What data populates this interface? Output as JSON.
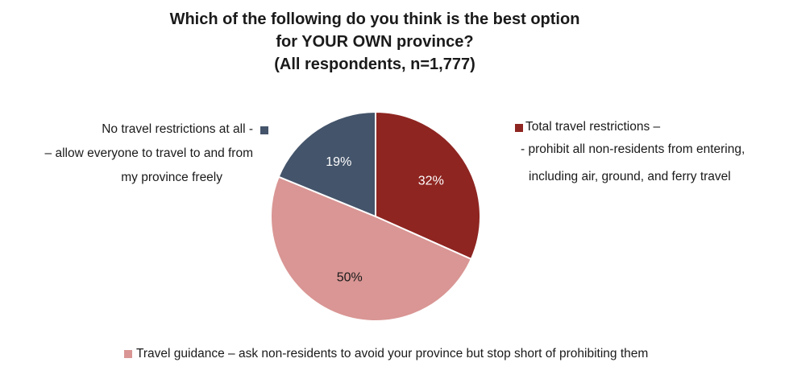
{
  "chart_data": {
    "type": "pie",
    "title": [
      "Which of the following do you think is the best option",
      "for YOUR OWN province?",
      "(All respondents, n=1,777)"
    ],
    "slices": [
      {
        "label_lines": [
          "Total travel restrictions –",
          "- prohibit all non-residents from entering,",
          "including air, ground, and ferry travel"
        ],
        "value": 32,
        "value_label": "32%",
        "color": "#8e2521",
        "label_color": "#ffffff"
      },
      {
        "label_lines": [
          "Travel guidance – ask non-residents to avoid your province but stop short of prohibiting them"
        ],
        "value": 50,
        "value_label": "50%",
        "color": "#d99694",
        "label_color": "#1a1a1a"
      },
      {
        "label_lines": [
          "No travel restrictions at all -",
          "– allow everyone to travel to and from",
          "my province freely"
        ],
        "value": 19,
        "value_label": "19%",
        "color": "#44546a",
        "label_color": "#ffffff"
      }
    ],
    "start": "12 o'clock, clockwise",
    "legend": "labels beside the pie"
  }
}
